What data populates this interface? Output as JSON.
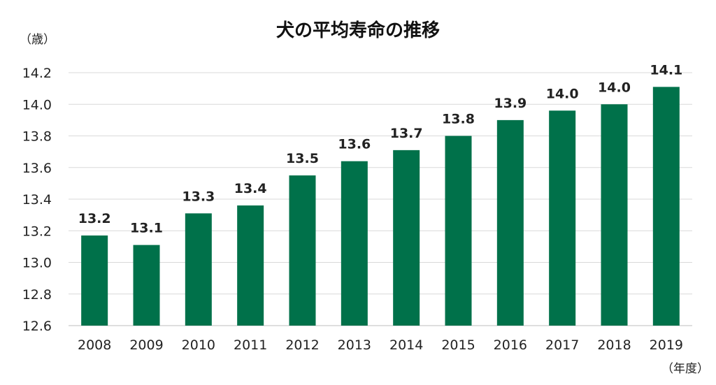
{
  "chart_data": {
    "type": "bar",
    "title": "犬の平均寿命の推移",
    "ylabel": "（歳）",
    "xlabel": "（年度）",
    "categories": [
      "2008",
      "2009",
      "2010",
      "2011",
      "2012",
      "2013",
      "2014",
      "2015",
      "2016",
      "2017",
      "2018",
      "2019"
    ],
    "values": [
      13.17,
      13.11,
      13.31,
      13.36,
      13.55,
      13.64,
      13.71,
      13.8,
      13.9,
      13.96,
      14.0,
      14.11
    ],
    "data_labels": [
      "13.2",
      "13.1",
      "13.3",
      "13.4",
      "13.5",
      "13.6",
      "13.7",
      "13.8",
      "13.9",
      "14.0",
      "14.0",
      "14.1"
    ],
    "ylim": [
      12.6,
      14.2
    ],
    "yticks": [
      "12.6",
      "12.8",
      "13.0",
      "13.2",
      "13.4",
      "13.6",
      "13.8",
      "14.0",
      "14.2"
    ],
    "grid": true,
    "legend": "none",
    "bar_color": "#00714a"
  }
}
